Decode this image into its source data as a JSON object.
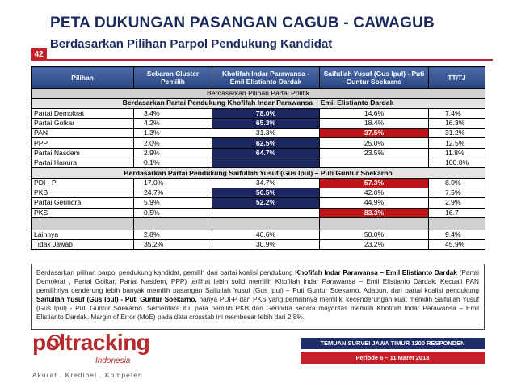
{
  "header": {
    "title": "PETA DUKUNGAN PASANGAN CAGUB - CAWAGUB",
    "subtitle": "Berdasarkan Pilihan Parpol Pendukung  Kandidat",
    "page_number": "42"
  },
  "table": {
    "header": [
      "Pilihan",
      "Sebaran Cluster Pemilih",
      "Khofifah Indar Parawansa - Emil Elistianto Dardak",
      "Saifullah Yusuf (Gus Ipul) - Puti Guntur Soekarno",
      "TT/TJ"
    ],
    "rows": [
      {
        "label": "Berdasarkan Pilihan Partai Politik"
      },
      {
        "label": "Berdasarkan Partai Pendukung Khofifah Indar Parawansa – Emil Elistianto Dardak"
      },
      {
        "pilihan": "Partai Demokrat",
        "sebaran": "3.4%",
        "khofifah": "78.0%",
        "saifullah": "14.6%",
        "tt": "7.4%"
      },
      {
        "pilihan": "Partai Golkar",
        "sebaran": "4.2%",
        "khofifah": "65.3%",
        "saifullah": "18.4%",
        "tt": "16.3%"
      },
      {
        "pilihan": "PAN",
        "sebaran": "1.3%",
        "khofifah": "31.3%",
        "saifullah": "37.5%",
        "tt": "31.2%"
      },
      {
        "pilihan": "PPP",
        "sebaran": "2.0%",
        "khofifah": "62.5%",
        "saifullah": "25.0%",
        "tt": "12.5%"
      },
      {
        "pilihan": "Partai Nasdem",
        "sebaran": "2.9%",
        "khofifah": "64.7%",
        "saifullah": "23.5%",
        "tt": "11.8%"
      },
      {
        "pilihan": "Partai Hanura",
        "sebaran": "0.1%",
        "tt": "100.0%"
      },
      {
        "label": "Berdasarkan Partai Pendukung Saifullah Yusuf (Gus Ipul) – Puti Guntur Soekarno"
      },
      {
        "pilihan": "PDI - P",
        "sebaran": "17.0%",
        "khofifah": "34.7%",
        "saifullah": "57.3%",
        "tt": "8.0%"
      },
      {
        "pilihan": "PKB",
        "sebaran": "24.7%",
        "khofifah": "50.5%",
        "saifullah": "42.0%",
        "tt": "7.5%"
      },
      {
        "pilihan": "Partai Gerindra",
        "sebaran": "5.9%",
        "khofifah": "52.2%",
        "saifullah": "44.9%",
        "tt": "2.9%"
      },
      {
        "pilihan": "PKS",
        "sebaran": "0.5%",
        "saifullah": "83.3%",
        "tt": "16.7"
      },
      {
        "pilihan": "Lainnya",
        "sebaran": "2.8%",
        "khofifah": "40.6%",
        "saifullah": "50.0%",
        "tt": "9.4%"
      },
      {
        "pilihan": "Tidak Jawab",
        "sebaran": "35.2%",
        "khofifah": "30.9%",
        "saifullah": "23.2%",
        "tt": "45.9%"
      }
    ]
  },
  "note": {
    "segments": [
      "Berdasarkan pilihan parpol pendukung kandidat, pemilih dari partai koalisi pendukung ",
      "Khofifah Indar Parawansa – Emil Elistianto Dardak",
      " (Partai Demokrat , Partai Golkar, Partai Nasdem, PPP) terlihat lebih solid memilih Khofifah Indar Parawansa – Emil Elistianto Dardak. Kecuali PAN pemilihnya cenderung lebih banyak memilih pasangan Saifullah Yusuf (Gus Ipul) – Puti Guntur Soekarno. Adapun, dari partai koalisi pendukung ",
      "Saifullah Yusuf  (Gus Ipul) - Puti Guntur Soekarno,",
      " hanya PDI-P dan PKS yang pemilihnya memiliki kecenderungan kuat memilih Saifullah Yusuf  (Gus Ipul) - Puti Guntur Soekarno. Sementara itu, para pemilih PKB dan Gerindra secara mayoritas memilih Khofifah Indar Parawansa – Emil Elistianto Dardak. Margin of Error (MoE) pada data crosstab ini membesar lebih dari 2.8%."
    ]
  },
  "footer": {
    "logo": "poltracking",
    "logo_sub": "Indonesia",
    "tagline": "Akurat . Kredibel . Kompeten",
    "survey": "TEMUAN SURVEI JAWA TIMUR 1200 RESPONDEN",
    "period": "Periode 6 – 11 Maret 2018"
  }
}
